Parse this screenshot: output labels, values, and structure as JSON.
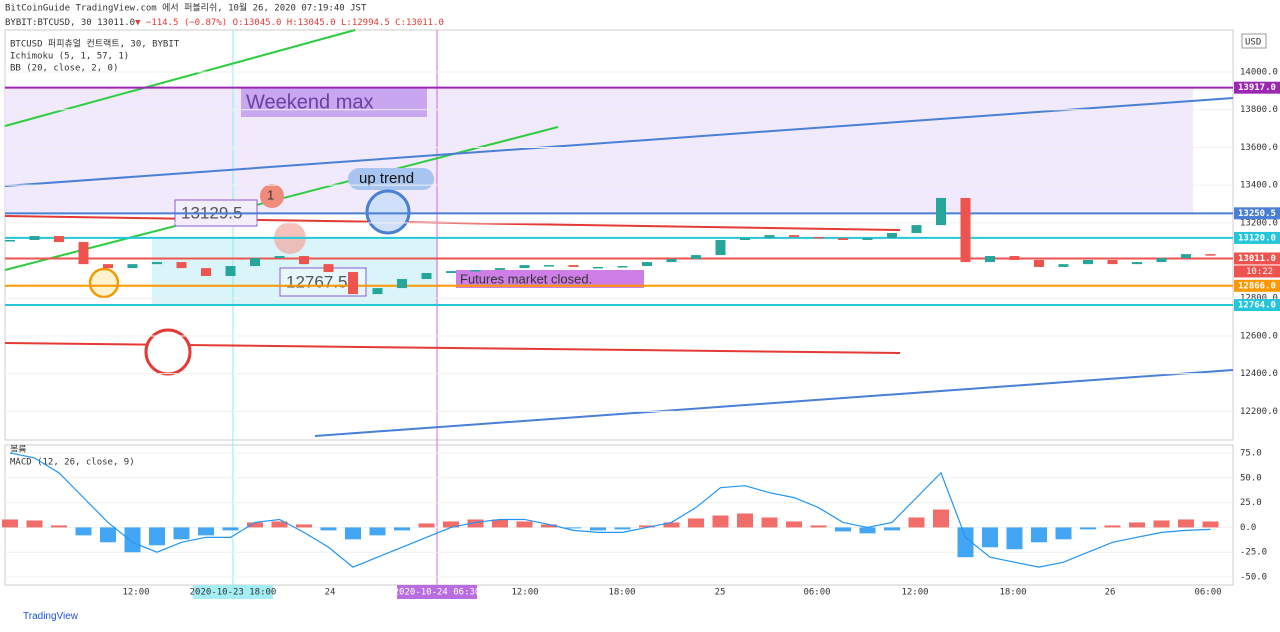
{
  "header": {
    "line1": "BitCoinGuide TradingView.com 에서 퍼블리쉬, 10월 26, 2020 07:19:40 JST",
    "symbol": "BYBIT:BTCUSD, 30",
    "last": "13011.0",
    "change": "▼ −114.5 (−0.87%)",
    "ohlc": "O:13045.0 H:13045.0 L:12994.5 C:13011.0"
  },
  "legend": [
    "BTCUSD 퍼피츄얼 컨트랙트, 30, BYBIT",
    "Ichimoku (5, 1, 57, 1)",
    "BB (20, close, 2, 0)"
  ],
  "lower_legend": [
    "볼륨",
    "MACD (12, 26, close, 9)"
  ],
  "annotations": {
    "weekend": "Weekend max",
    "high": "13129.5",
    "marker": "1",
    "trend": "up trend",
    "low": "12767.5",
    "closed": "Futures market closed."
  },
  "price": {
    "unit": "USD",
    "ylim": [
      12048,
      14223
    ],
    "yticks": [
      {
        "value": 12200,
        "label": "12200.0"
      },
      {
        "value": 12400,
        "label": "12400.0"
      },
      {
        "value": 12600,
        "label": "12600.0"
      },
      {
        "value": 12800,
        "label": "12800.0"
      },
      {
        "value": 13200,
        "label": "13200.0"
      },
      {
        "value": 13400,
        "label": "13400.0"
      },
      {
        "value": 13600,
        "label": "13600.0"
      },
      {
        "value": 13800,
        "label": "13800.0"
      },
      {
        "value": 14000,
        "label": "14000.0"
      }
    ],
    "levels": [
      {
        "value": 13917,
        "label": "13917.0",
        "color": "#9c27b0"
      },
      {
        "value": 13250.5,
        "label": "13250.5",
        "color": "#4a7fd6"
      },
      {
        "value": 13120,
        "label": "13120.0",
        "color": "#26c6da"
      },
      {
        "value": 13011,
        "label": "13011.0",
        "color": "#ef5350"
      },
      {
        "value": 12866,
        "label": "12866.0",
        "color": "#ff9800"
      },
      {
        "value": 12764,
        "label": "12764.0",
        "color": "#26c6da"
      }
    ],
    "countdown": "10:22",
    "closes": [
      13109,
      13130,
      13098,
      12981,
      12960,
      12981,
      12992,
      12960,
      12918,
      12971,
      13013,
      13024,
      12981,
      12939,
      12822,
      12854,
      12902,
      12934,
      12944,
      12950,
      12960,
      12976,
      12976,
      12966,
      12966,
      12971,
      12992,
      13008,
      13029,
      13109,
      13119,
      13135,
      13125,
      13119,
      13109,
      13119,
      13146,
      13188,
      13332,
      12992,
      13024,
      13003,
      12966,
      12981,
      13003,
      12981,
      12992,
      13013,
      13034,
      13029
    ]
  },
  "macd": {
    "ylim": [
      -58,
      83
    ],
    "yticks": [
      {
        "value": 75,
        "label": "75.0"
      },
      {
        "value": 50,
        "label": "50.0"
      },
      {
        "value": 25,
        "label": "25.0"
      },
      {
        "value": 0,
        "label": "0.0"
      },
      {
        "value": -25,
        "label": "-25.0"
      },
      {
        "value": -50,
        "label": "-50.0"
      }
    ],
    "histogram": [
      8,
      7,
      2,
      -8,
      -15,
      -25,
      -18,
      -12,
      -8,
      -3,
      5,
      6,
      3,
      -3,
      -12,
      -8,
      -3,
      4,
      6,
      8,
      8,
      6,
      3,
      -1,
      -3,
      -2,
      2,
      5,
      9,
      12,
      14,
      10,
      6,
      2,
      -4,
      -6,
      -3,
      10,
      18,
      -30,
      -20,
      -22,
      -15,
      -12,
      -2,
      2,
      5,
      7,
      8,
      6
    ],
    "line": [
      75,
      70,
      55,
      30,
      5,
      -15,
      -25,
      -15,
      -10,
      -10,
      5,
      8,
      -5,
      -20,
      -40,
      -30,
      -20,
      -10,
      0,
      5,
      8,
      8,
      3,
      -3,
      -5,
      -5,
      0,
      5,
      20,
      40,
      42,
      35,
      30,
      20,
      5,
      0,
      5,
      30,
      55,
      -10,
      -30,
      -35,
      -40,
      -35,
      -25,
      -15,
      -10,
      -5,
      -3,
      -2
    ]
  },
  "time_labels": [
    "12:00",
    "2020-10-23 18:00",
    "24",
    "2020-10-24 06:30",
    "12:00",
    "18:00",
    "25",
    "06:00",
    "12:00",
    "18:00",
    "26",
    "06:00"
  ],
  "footer": "TradingView"
}
